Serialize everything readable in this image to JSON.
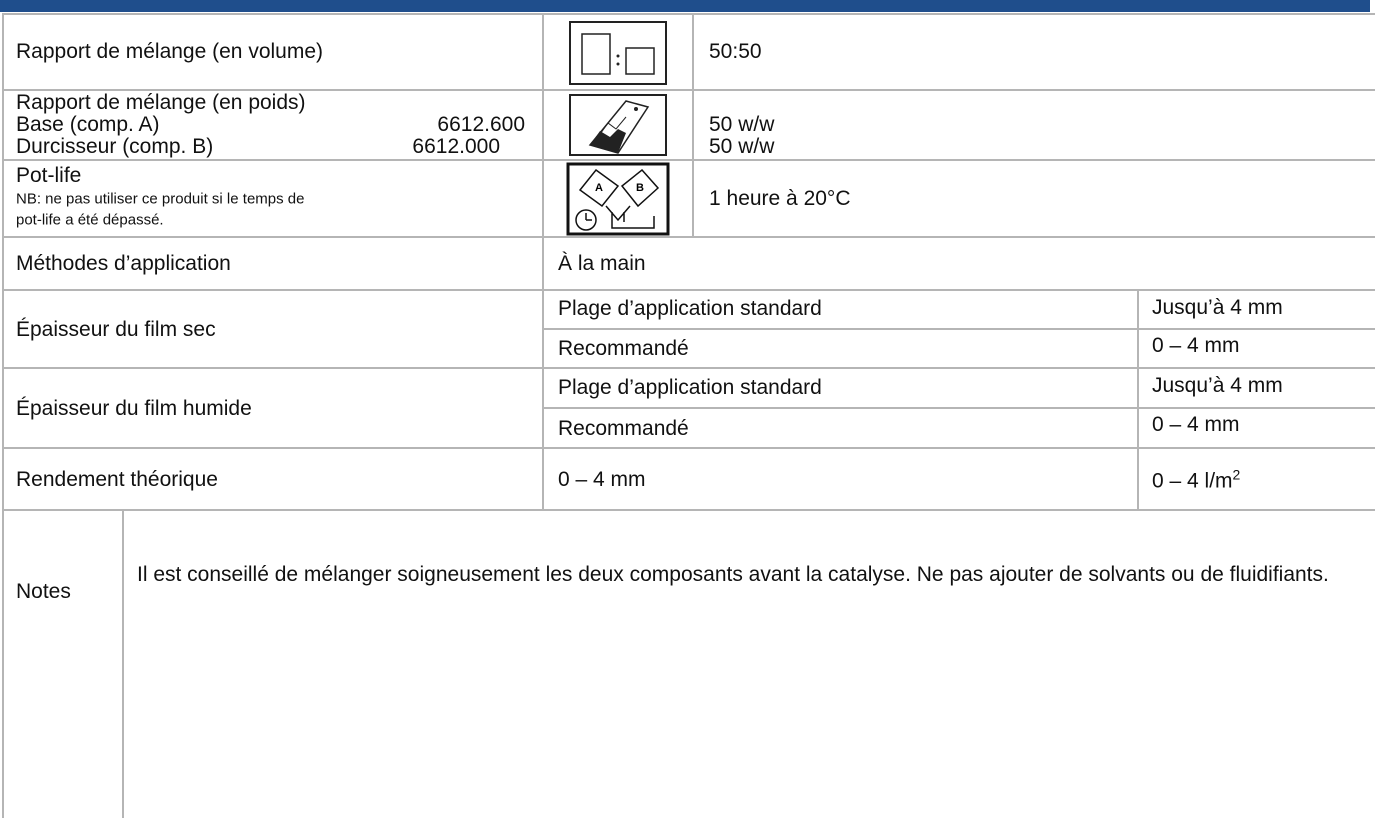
{
  "rows": [
    {
      "label": "Rapport de mélange (en volume)",
      "icon": {},
      "value": "50:50"
    },
    {
      "label": "Rapport de mélange (en poids)",
      "items": [
        {
          "name": "Base (comp. A)",
          "code": "6612.600"
        },
        {
          "name": "Durcisseur (comp. B)",
          "code": "6612.000"
        }
      ],
      "values": [
        "50 w/w",
        "50 w/w"
      ]
    },
    {
      "label": "Pot-life",
      "note": [
        "NB: ne pas utiliser ce produit si le temps de",
        "pot-life a été dépassé."
      ],
      "icon": {
        "left": "A",
        "right": "B"
      },
      "value": "1 heure à 20°C"
    },
    {
      "label": "Méthodes d’application",
      "value": "À la main"
    },
    {
      "label": "Épaisseur du film sec",
      "sub": [
        {
          "name": "Plage d’application standard",
          "value": "Jusqu’à 4 mm"
        },
        {
          "name": "Recommandé",
          "value": "0 – 4 mm"
        }
      ]
    },
    {
      "label": "Épaisseur du film humide",
      "sub": [
        {
          "name": "Plage d’application standard",
          "value": "Jusqu’à 4 mm"
        },
        {
          "name": "Recommandé",
          "value": "0 – 4 mm"
        }
      ]
    },
    {
      "label": "Rendement théorique",
      "value": "0 – 4 mm",
      "value2": {
        "text": "0 – 4 l/m",
        "sup": "2"
      }
    }
  ],
  "notes": {
    "label": "Notes",
    "text": "Il est conseillé de mélanger soigneusement les deux composants avant la catalyse. Ne pas ajouter de solvants ou de fluidifiants."
  }
}
